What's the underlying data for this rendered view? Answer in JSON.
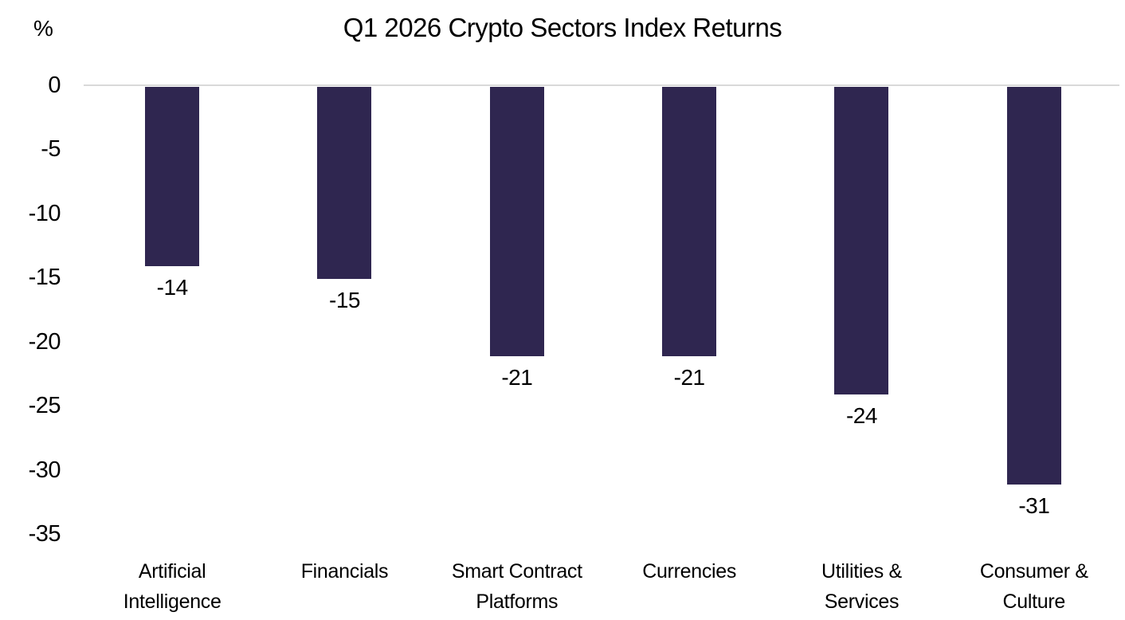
{
  "chart_data": {
    "type": "bar",
    "title": "Q1 2026 Crypto Sectors Index Returns",
    "xlabel": "",
    "ylabel": "%",
    "categories": [
      "Artificial Intelligence",
      "Financials",
      "Smart Contract Platforms",
      "Currencies",
      "Utilities & Services",
      "Consumer & Culture"
    ],
    "category_lines": [
      [
        "Artificial",
        "Intelligence"
      ],
      [
        "Financials"
      ],
      [
        "Smart Contract",
        "Platforms"
      ],
      [
        "Currencies"
      ],
      [
        "Utilities &",
        "Services"
      ],
      [
        "Consumer &",
        "Culture"
      ]
    ],
    "values": [
      -14,
      -15,
      -21,
      -21,
      -24,
      -31
    ],
    "data_labels": [
      "-14",
      "-15",
      "-21",
      "-21",
      "-24",
      "-31"
    ],
    "y_ticks": [
      0,
      -5,
      -10,
      -15,
      -20,
      -25,
      -30,
      -35
    ],
    "ylim": [
      -35,
      0
    ],
    "grid": false,
    "legend_position": "none",
    "bar_color": "#2F2650",
    "axis_line_color": "#D9D9D9",
    "text_color": "#000000",
    "background_color": "#FFFFFF"
  }
}
